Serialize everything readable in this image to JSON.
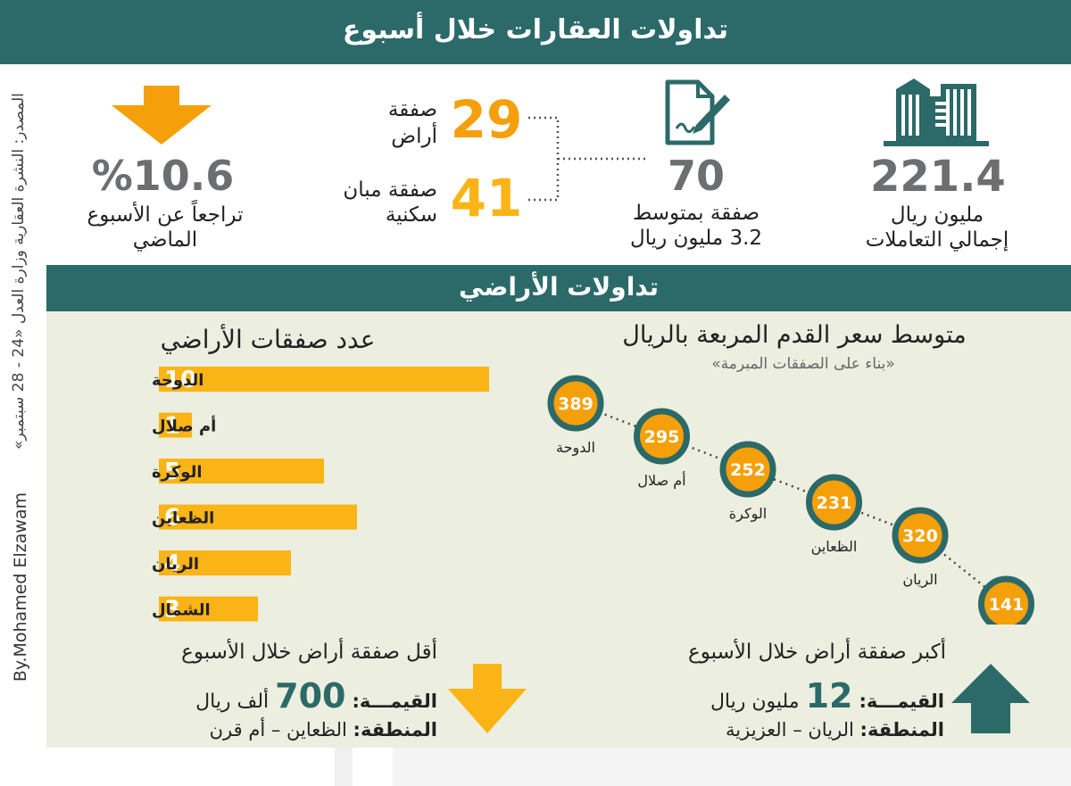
{
  "title": "تداولات العقارات خلال أسبوع",
  "source": "المصدر: النشرة العقارية وزارة العدل «24 - 28 سبتمبر»",
  "byline": "By.Mohamed Elzawam",
  "stats": {
    "total_value": "221.4",
    "total_unit": "مليون ريال",
    "total_label": "إجمالي التعاملات",
    "deals_count": "70",
    "deals_line1": "صفقة بمتوسط",
    "deals_line2": "3.2 مليون ريال",
    "land_count": "29",
    "land_line1": "صفقة",
    "land_line2": "أراض",
    "res_count": "41",
    "res_line1": "صفقة مبان",
    "res_line2": "سكنية",
    "decline_value": "%10.6",
    "decline_line1": "تراجعاً عن الأسبوع",
    "decline_line2": "الماضي"
  },
  "lands_title": "تداولات الأراضي",
  "colors": {
    "teal": "#2b6a68",
    "orange": "#f5a00b",
    "yellow": "#fbb416",
    "beige": "#eceee0",
    "gray": "#6d6e70"
  },
  "icons": [
    "buildings-icon",
    "contract-pen-icon",
    "down-arrow-icon",
    "up-arrow-icon"
  ],
  "chart_data": [
    {
      "type": "bar",
      "title": "عدد صفقات الأراضي",
      "categories": [
        "الدوحة",
        "أم صلال",
        "الوكرة",
        "الظعاين",
        "الريان",
        "الشمال"
      ],
      "values": [
        10,
        1,
        5,
        6,
        4,
        3
      ],
      "orientation": "horizontal"
    },
    {
      "type": "line",
      "title": "متوسط سعر القدم المربعة بالريال",
      "subtitle": "«بناء على الصفقات المبرمة»",
      "categories": [
        "الدوحة",
        "أم صلال",
        "الوكرة",
        "الظعاين",
        "الريان",
        "الشمال"
      ],
      "values": [
        389,
        295,
        252,
        231,
        320,
        141
      ]
    }
  ],
  "smallest": {
    "heading": "أقل صفقة أراض خلال الأسبوع",
    "value_label": "القيمـــة:",
    "value": "700",
    "value_unit": "ألف ريال",
    "area_label": "المنطقة:",
    "area": "الظعاين – أم قرن"
  },
  "largest": {
    "heading": "أكبر صفقة أراض خلال الأسبوع",
    "value_label": "القيمـــة:",
    "value": "12",
    "value_unit": "مليون ريال",
    "area_label": "المنطقة:",
    "area": "الريان – العزيزية"
  }
}
